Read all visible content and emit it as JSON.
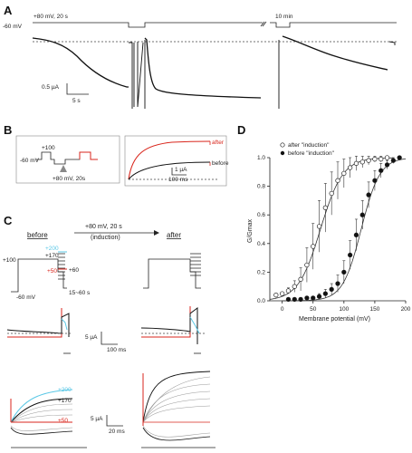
{
  "panels": {
    "A": "A",
    "B": "B",
    "C": "C",
    "D": "D"
  },
  "panel_a": {
    "protocol_label": "+80 mV, 20 s",
    "holding_label": "-60 mV",
    "gap_label": "10 min",
    "scale_current": "0.5 µA",
    "scale_time": "5 s"
  },
  "panel_b": {
    "step_label": "+100",
    "holding_label": "-60 mV",
    "arrow_label": "+80 mV, 20s",
    "after_label": "after",
    "before_label": "before",
    "scale_current": "1 µA",
    "scale_time": "100 ms"
  },
  "panel_c": {
    "before_title": "before",
    "after_title": "after",
    "induction_line1": "+80 mV, 20 s",
    "induction_line2": "(induction)",
    "v_plus100": "+100",
    "v_plus200": "+200",
    "v_plus170": "+170",
    "v_plus50": "+50",
    "v_plus60": "+60",
    "v_holding": "-60 mV",
    "v_range": "15~60 s",
    "scale1_current": "5 µA",
    "scale1_time": "100 ms",
    "scale2_current": "5 µA",
    "scale2_time": "20 ms",
    "colors": {
      "red": "#d9261c",
      "cyan": "#5bc8e6",
      "grey": "#9a9a9a"
    }
  },
  "panel_d": {
    "legend_after": "after \"induction\"",
    "legend_before": "before \"induction\""
  },
  "chart_data": {
    "type": "scatter",
    "ylabel": "G/Gmax",
    "xlabel": "Membrane potential (mV)",
    "xlim": [
      -20,
      200
    ],
    "ylim": [
      0,
      1.0
    ],
    "xticks": [
      0,
      50,
      100,
      150,
      200
    ],
    "yticks": [
      0.0,
      0.2,
      0.4,
      0.6,
      0.8,
      1.0
    ],
    "series": [
      {
        "name": "after \"induction\"",
        "marker": "open-circle",
        "x": [
          -10,
          0,
          10,
          20,
          30,
          40,
          50,
          60,
          70,
          80,
          90,
          100,
          110,
          120,
          130,
          140,
          150,
          160,
          170
        ],
        "y": [
          0.04,
          0.05,
          0.07,
          0.1,
          0.15,
          0.25,
          0.38,
          0.52,
          0.65,
          0.75,
          0.84,
          0.89,
          0.93,
          0.96,
          0.97,
          0.98,
          0.99,
          0.99,
          1.0
        ],
        "err": [
          0.01,
          0.01,
          0.02,
          0.04,
          0.08,
          0.12,
          0.16,
          0.18,
          0.17,
          0.15,
          0.13,
          0.1,
          0.07,
          0.05,
          0.04,
          0.03,
          0.02,
          0.02,
          0.01
        ]
      },
      {
        "name": "before \"induction\"",
        "marker": "filled-circle",
        "x": [
          10,
          20,
          30,
          40,
          50,
          60,
          70,
          80,
          90,
          100,
          110,
          120,
          130,
          140,
          150,
          160,
          170,
          180,
          190
        ],
        "y": [
          0.01,
          0.01,
          0.01,
          0.02,
          0.02,
          0.03,
          0.05,
          0.08,
          0.12,
          0.2,
          0.32,
          0.46,
          0.6,
          0.74,
          0.84,
          0.91,
          0.95,
          0.98,
          1.0
        ],
        "err": [
          0.0,
          0.0,
          0.0,
          0.01,
          0.01,
          0.02,
          0.03,
          0.04,
          0.06,
          0.08,
          0.1,
          0.11,
          0.1,
          0.09,
          0.07,
          0.05,
          0.03,
          0.02,
          0.01
        ]
      }
    ]
  }
}
